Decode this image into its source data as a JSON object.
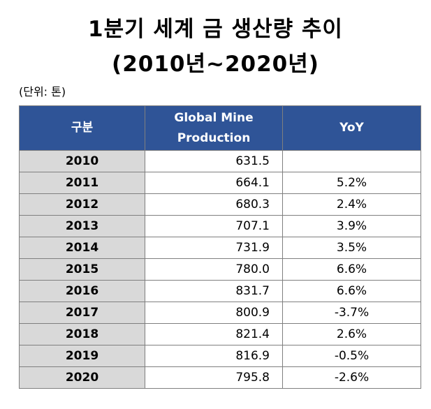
{
  "title": {
    "line1": "1분기 세계 금 생산량 추이",
    "line2": "(2010년~2020년)"
  },
  "unit_label": "(단위: 톤)",
  "table": {
    "headers": [
      "구분",
      "Global Mine Production",
      "YoY"
    ],
    "rows": [
      {
        "year": "2010",
        "production": "631.5",
        "yoy": ""
      },
      {
        "year": "2011",
        "production": "664.1",
        "yoy": "5.2%"
      },
      {
        "year": "2012",
        "production": "680.3",
        "yoy": "2.4%"
      },
      {
        "year": "2013",
        "production": "707.1",
        "yoy": "3.9%"
      },
      {
        "year": "2014",
        "production": "731.9",
        "yoy": "3.5%"
      },
      {
        "year": "2015",
        "production": "780.0",
        "yoy": "6.6%"
      },
      {
        "year": "2016",
        "production": "831.7",
        "yoy": "6.6%"
      },
      {
        "year": "2017",
        "production": "800.9",
        "yoy": "-3.7%"
      },
      {
        "year": "2018",
        "production": "821.4",
        "yoy": "2.6%"
      },
      {
        "year": "2019",
        "production": "816.9",
        "yoy": "-0.5%"
      },
      {
        "year": "2020",
        "production": "795.8",
        "yoy": "-2.6%"
      }
    ]
  },
  "colors": {
    "header_background": "#2f5497",
    "header_text": "#ffffff",
    "year_cell_background": "#d9d9d9",
    "border": "#7f7f7f"
  }
}
